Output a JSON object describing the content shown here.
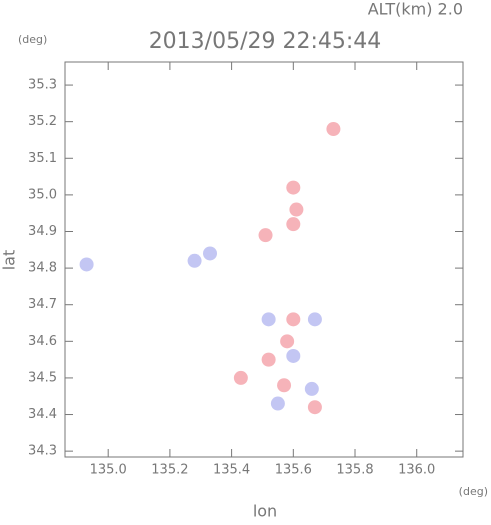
{
  "header": {
    "altitude": "ALT(km) 2.0",
    "top_unit": "(deg)",
    "bottom_unit": "(deg)"
  },
  "chart_data": {
    "type": "scatter",
    "title": "2013/05/29 22:45:44",
    "x_label": "lon",
    "y_label": "lat",
    "xlim": [
      134.86,
      136.15
    ],
    "ylim": [
      34.284,
      35.363
    ],
    "xticks": [
      {
        "value": 135,
        "label": "135.0"
      },
      135.2,
      135.4,
      135.6,
      135.8,
      {
        "value": 136,
        "label": "136.0"
      }
    ],
    "yticks": [
      34.3,
      34.4,
      34.5,
      34.6,
      34.7,
      34.8,
      34.9,
      {
        "value": 35,
        "label": "35.0"
      },
      35.1,
      35.2,
      35.3
    ],
    "series": [
      {
        "color": "#f4a0a8",
        "x": [
          135.6,
          135.61,
          135.6,
          135.51,
          135.73,
          135.6,
          135.58,
          135.57,
          135.67,
          135.43,
          135.52
        ],
        "y": [
          35.02,
          34.96,
          34.92,
          34.89,
          35.18,
          34.66,
          34.6,
          34.48,
          34.42,
          34.5,
          34.55
        ]
      },
      {
        "color": "#b4b8f0",
        "x": [
          135.33,
          135.28,
          134.93,
          135.66,
          135.52,
          135.6,
          135.55,
          135.67
        ],
        "y": [
          34.84,
          34.82,
          34.81,
          34.47,
          34.66,
          34.56,
          34.43,
          34.66
        ]
      }
    ]
  }
}
